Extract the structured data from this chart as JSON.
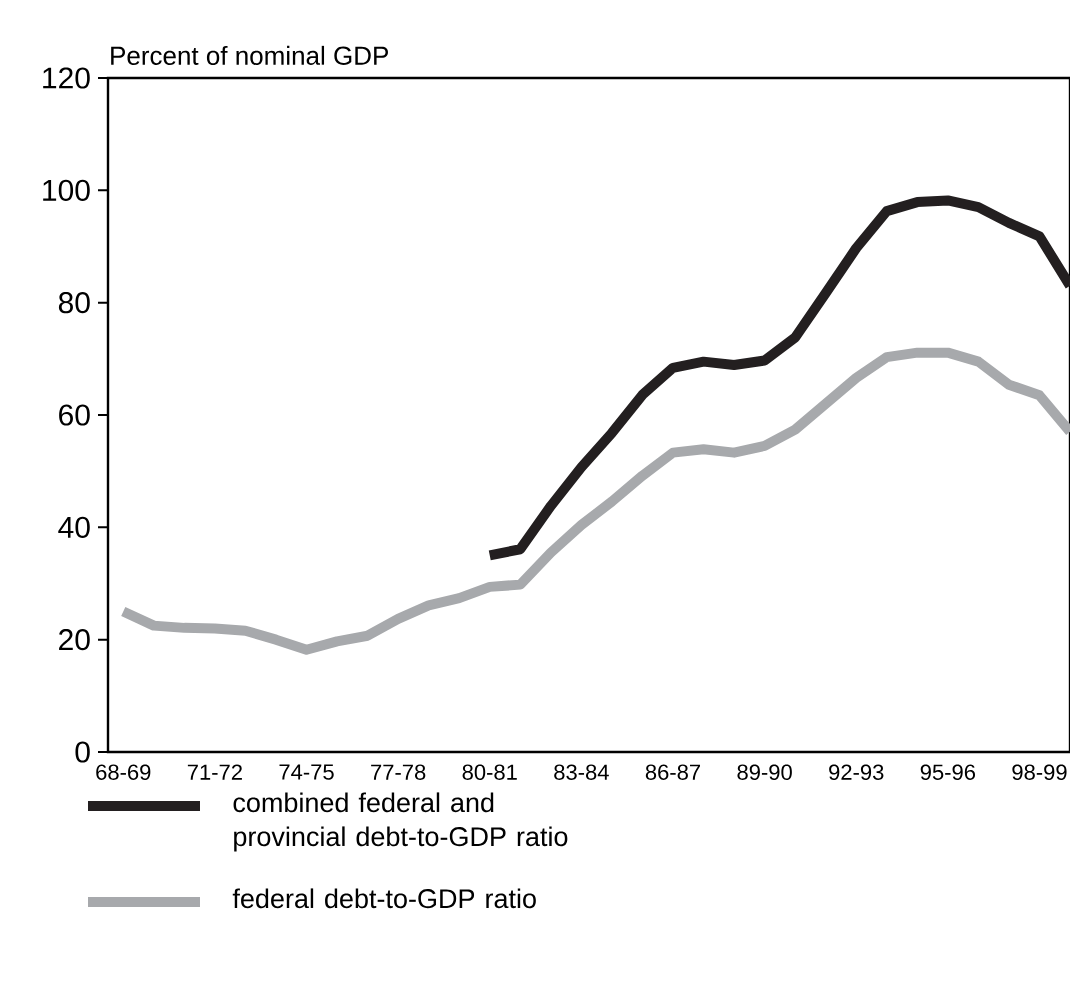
{
  "chart_data": {
    "type": "line",
    "ylabel": "Percent of nominal GDP",
    "categories": [
      "68-69",
      null,
      null,
      "71-72",
      null,
      null,
      "74-75",
      null,
      null,
      "77-78",
      null,
      null,
      "80-81",
      null,
      null,
      "83-84",
      null,
      null,
      "86-87",
      null,
      null,
      "89-90",
      null,
      null,
      "92-93",
      null,
      null,
      "95-96",
      null,
      null,
      "98-99",
      null
    ],
    "series": [
      {
        "name": "combined federal and provincial debt-to-GDP ratio",
        "color": "#231f20",
        "values": [
          null,
          null,
          null,
          null,
          null,
          null,
          null,
          null,
          null,
          null,
          null,
          null,
          35,
          36.1,
          43.8,
          50.7,
          56.8,
          63.6,
          68.4,
          69.5,
          68.9,
          69.7,
          73.8,
          81.7,
          89.7,
          96.3,
          97.9,
          98.2,
          97,
          94.2,
          91.8,
          83
        ]
      },
      {
        "name": "federal debt-to-GDP ratio",
        "color": "#a7a9ac",
        "values": [
          25,
          22.5,
          22.1,
          22,
          21.6,
          20,
          18.2,
          19.7,
          20.7,
          23.7,
          26.1,
          27.4,
          29.4,
          29.8,
          35.5,
          40.4,
          44.6,
          49.2,
          53.3,
          53.9,
          53.3,
          54.5,
          57.4,
          62,
          66.6,
          70.3,
          71.1,
          71.1,
          69.5,
          65.4,
          63.5,
          57
        ]
      }
    ],
    "ylim": [
      0,
      120
    ],
    "yticks": [
      0,
      20,
      40,
      60,
      80,
      100,
      120
    ],
    "legend": "bottom",
    "line_style": "solid",
    "marker": "none"
  }
}
